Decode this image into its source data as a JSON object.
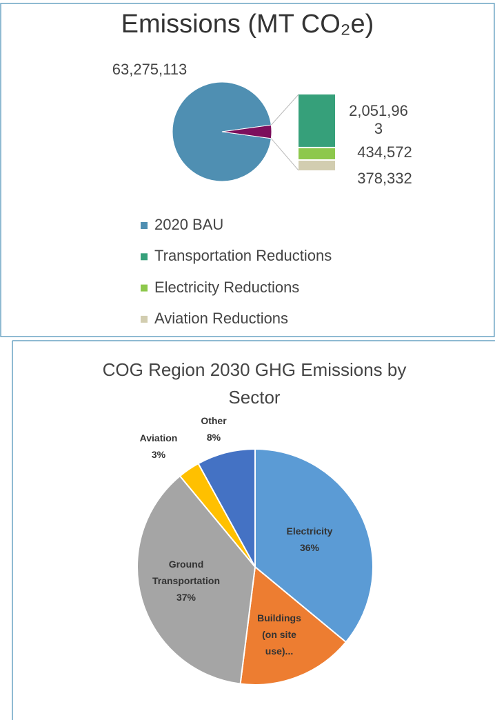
{
  "chart_data": [
    {
      "type": "bar-of-pie",
      "title": "Emissions (MT CO₂e)",
      "categories": [
        "2020 BAU",
        "Transportation Reductions",
        "Electricity Reductions",
        "Aviation Reductions"
      ],
      "values": [
        63275113,
        2051963,
        434572,
        378332
      ],
      "value_labels": [
        "63,275,113",
        "2,051,963",
        "434,572",
        "378,332"
      ],
      "colors": [
        "#4f8fb2",
        "#36a07a",
        "#8dc84c",
        "#d2cdb0"
      ],
      "other_color": "#7c0f5c",
      "legend": "bottom"
    },
    {
      "type": "pie",
      "title": "COG Region 2030 GHG Emissions by Sector",
      "categories": [
        "Electricity",
        "Buildings (on site use)...",
        "Ground Transportation",
        "Aviation",
        "Other"
      ],
      "values": [
        36,
        16,
        37,
        3,
        8
      ],
      "value_labels": [
        "36%",
        null,
        "37%",
        "3%",
        "8%"
      ],
      "colors": [
        "#5b9bd5",
        "#ed7d31",
        "#a5a5a5",
        "#ffc000",
        "#4472c4"
      ]
    }
  ]
}
